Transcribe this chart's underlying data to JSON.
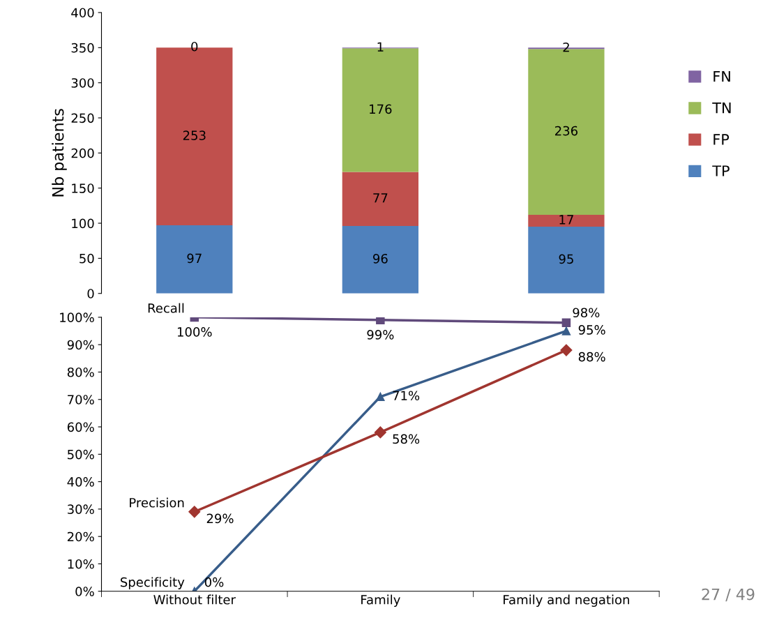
{
  "chart_data": [
    {
      "type": "bar",
      "stacked": true,
      "categories": [
        null,
        null,
        null
      ],
      "ylabel": "Nb patients",
      "ylim": [
        0,
        400
      ],
      "yticks": [
        0,
        50,
        100,
        150,
        200,
        250,
        300,
        350,
        400
      ],
      "tick_labels": "y",
      "legend": "right",
      "grid": false,
      "series": [
        {
          "name": "TP",
          "color": "#4f81bd",
          "values": [
            97,
            96,
            95
          ],
          "value_labels": [
            "97",
            "96",
            "95"
          ]
        },
        {
          "name": "FP",
          "color": "#c0504d",
          "values": [
            253,
            77,
            17
          ],
          "value_labels": [
            "253",
            "77",
            "17"
          ]
        },
        {
          "name": "TN",
          "color": "#9bbb59",
          "values": [
            0,
            176,
            236
          ],
          "value_labels": [
            null,
            "176",
            "236"
          ]
        },
        {
          "name": "FN",
          "color": "#8064a2",
          "values": [
            0,
            1,
            2
          ],
          "value_labels": [
            "0",
            "1",
            "2"
          ]
        }
      ]
    },
    {
      "type": "line",
      "categories": [
        "Without filter",
        "Family",
        "Family and negation"
      ],
      "ylim": [
        0,
        100
      ],
      "yticks": [
        {
          "value": 0,
          "label": "0%"
        },
        {
          "value": 10,
          "label": "10%"
        },
        {
          "value": 20,
          "label": "20%"
        },
        {
          "value": 30,
          "label": "30%"
        },
        {
          "value": 40,
          "label": "40%"
        },
        {
          "value": 50,
          "label": "50%"
        },
        {
          "value": 60,
          "label": "60%"
        },
        {
          "value": 70,
          "label": "70%"
        },
        {
          "value": 80,
          "label": "80%"
        },
        {
          "value": 90,
          "label": "90%"
        },
        {
          "value": 100,
          "label": "100%"
        }
      ],
      "grid": false,
      "legend": false,
      "annotations": [
        "27 / 49"
      ],
      "series": [
        {
          "name": "Recall",
          "color": "#604a7b",
          "marker": "square",
          "values": [
            100,
            99,
            98
          ],
          "value_labels": [
            "100%",
            "99%",
            "98%"
          ]
        },
        {
          "name": "Specificity",
          "color": "#385d8a",
          "marker": "triangle",
          "values": [
            0,
            71,
            95
          ],
          "value_labels": [
            "0%",
            "71%",
            "95%"
          ]
        },
        {
          "name": "Precision",
          "color": "#a0352f",
          "marker": "diamond",
          "values": [
            29,
            58,
            88
          ],
          "value_labels": [
            "29%",
            "58%",
            "88%"
          ]
        }
      ]
    }
  ]
}
